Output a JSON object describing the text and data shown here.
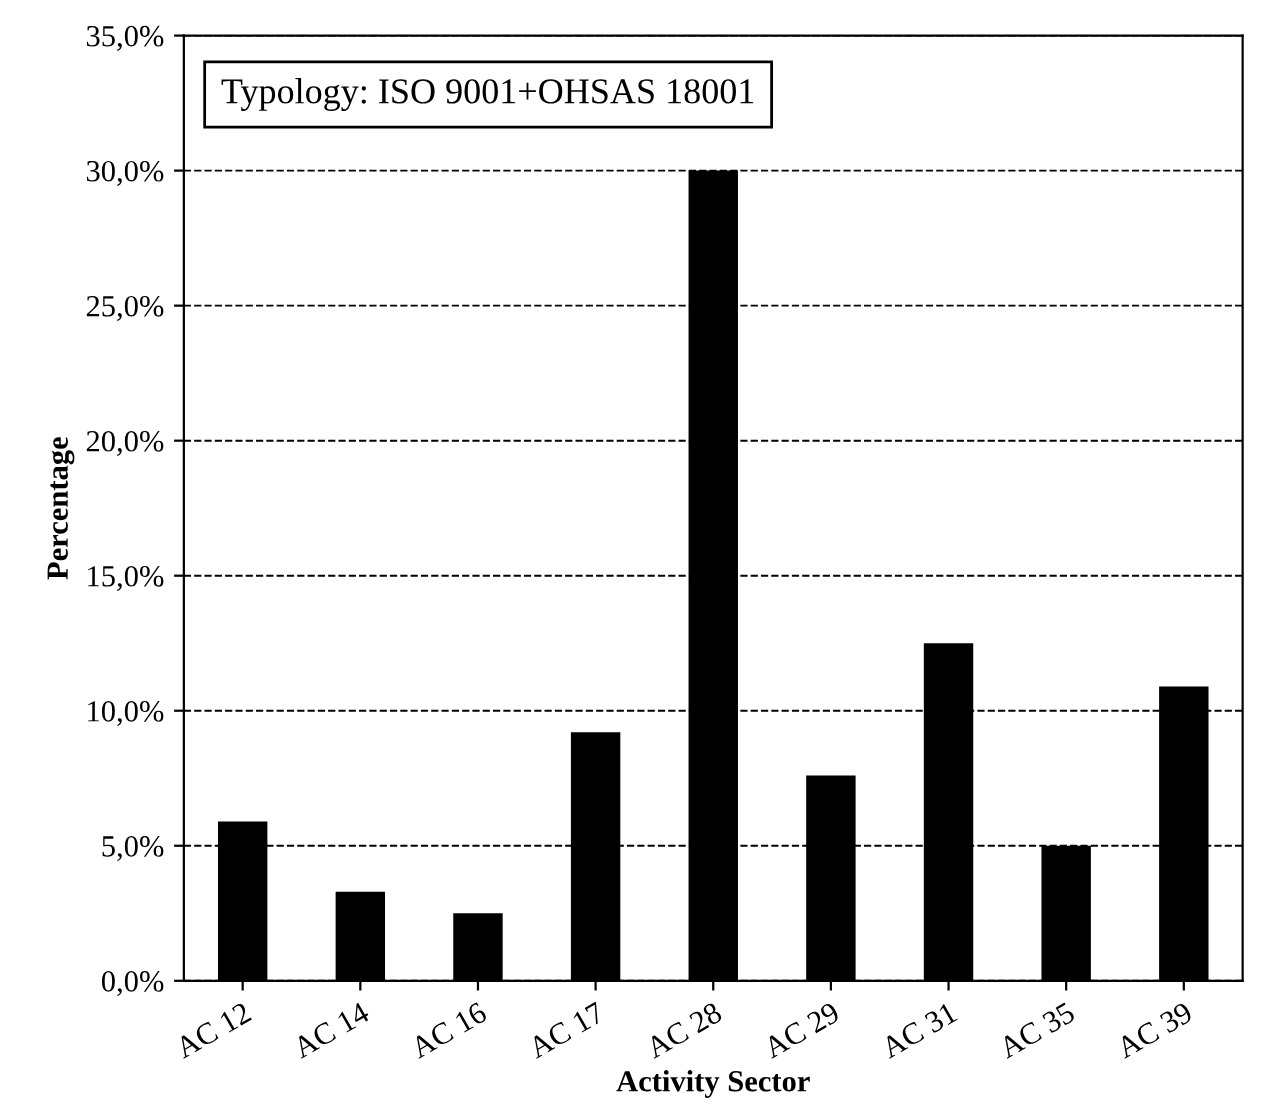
{
  "chart_data": {
    "type": "bar",
    "xlabel": "Activity Sector",
    "ylabel": "Percentage",
    "annotations": [
      "Typology: ISO 9001+OHSAS 18001"
    ],
    "categories": [
      "AC 12",
      "AC 14",
      "AC 16",
      "AC 17",
      "AC 28",
      "AC 29",
      "AC 31",
      "AC 35",
      "AC 39"
    ],
    "values": [
      5.9,
      3.3,
      2.5,
      9.2,
      30.0,
      7.6,
      12.5,
      5.0,
      10.9
    ],
    "color": "#000000",
    "ylim": [
      0,
      35
    ],
    "yticks": [
      {
        "value": 0,
        "label": "0,0%"
      },
      {
        "value": 5,
        "label": "5,0%"
      },
      {
        "value": 10,
        "label": "10,0%"
      },
      {
        "value": 15,
        "label": "15,0%"
      },
      {
        "value": 20,
        "label": "20,0%"
      },
      {
        "value": 25,
        "label": "25,0%"
      },
      {
        "value": 30,
        "label": "30,0%"
      },
      {
        "value": 35,
        "label": "35,0%"
      }
    ],
    "grid": "y",
    "line_style": "dashed",
    "legend": false
  }
}
